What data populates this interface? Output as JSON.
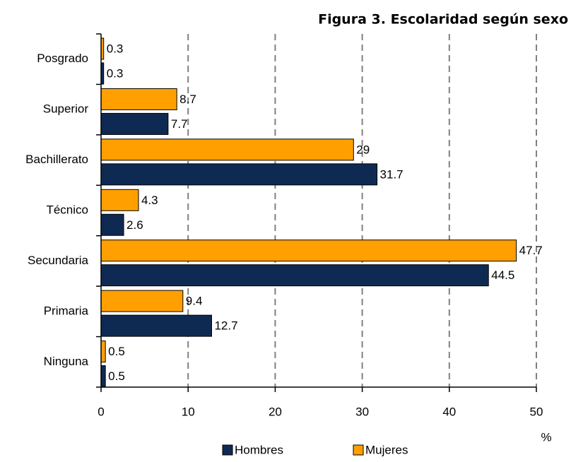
{
  "chart_data": {
    "type": "hbar",
    "title": "Figura 3. Escolaridad según sexo",
    "categories": [
      "Ninguna",
      "Primaria",
      "Secundaria",
      "Técnico",
      "Bachillerato",
      "Superior",
      "Posgrado"
    ],
    "series": [
      {
        "name": "Hombres",
        "color": "#0f2a52",
        "values": [
          0.5,
          12.7,
          44.5,
          2.6,
          31.7,
          7.7,
          0.3
        ]
      },
      {
        "name": "Mujeres",
        "color": "#ffa000",
        "values": [
          0.5,
          9.4,
          47.7,
          4.3,
          29,
          8.7,
          0.3
        ]
      }
    ],
    "xlabel": "%",
    "xlim": [
      0,
      50
    ],
    "xticks": [
      0,
      10,
      20,
      30,
      40,
      50
    ],
    "grid": true,
    "legend": "bottom"
  }
}
